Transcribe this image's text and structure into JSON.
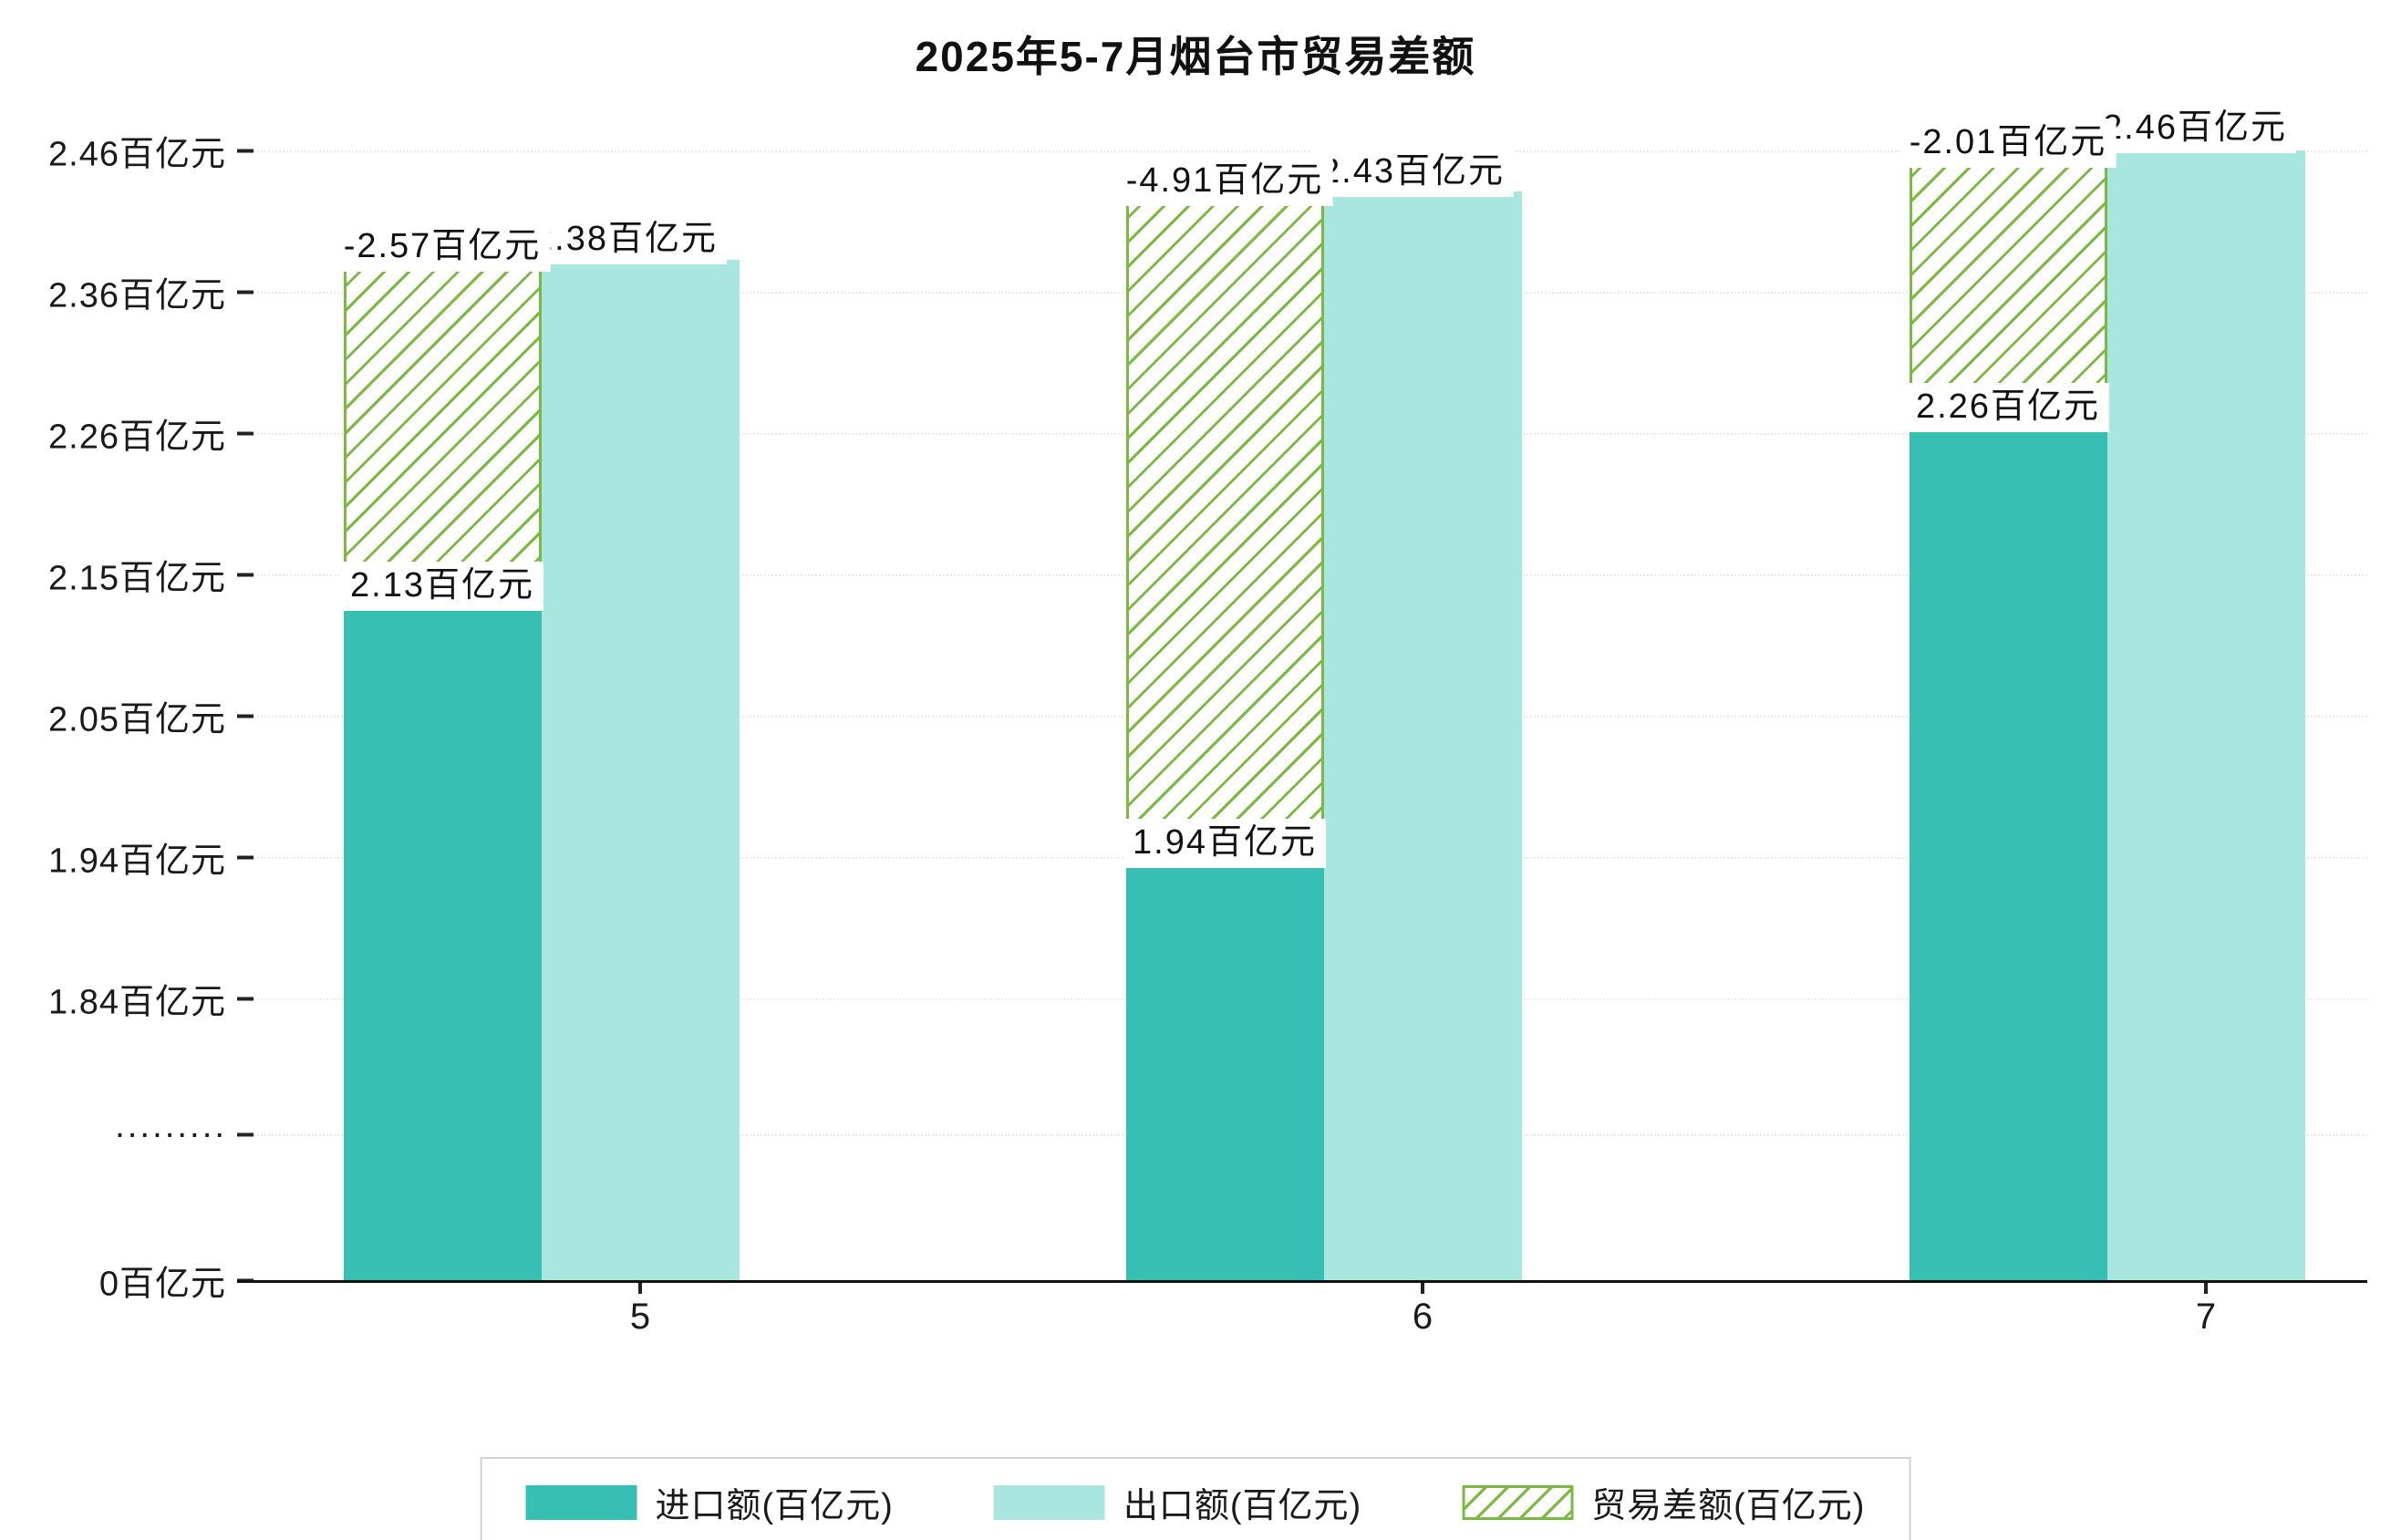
{
  "title": "2025年5-7月烟台市贸易差额",
  "colors": {
    "import": "#38bfb3",
    "export": "#a9e6df",
    "diff": "#7cb943",
    "axis": "#111111"
  },
  "y_axis": {
    "ticks": [
      "2.46百亿元",
      "2.36百亿元",
      "2.26百亿元",
      "2.15百亿元",
      "2.05百亿元",
      "1.94百亿元",
      "1.84百亿元",
      "·········",
      "0百亿元"
    ]
  },
  "x_axis": {
    "ticks": [
      "5",
      "6",
      "7"
    ]
  },
  "months": [
    {
      "month": "5",
      "import_label": "2.13百亿元",
      "export_label": "2.38百亿元",
      "diff_label": "-2.57百亿元"
    },
    {
      "month": "6",
      "import_label": "1.94百亿元",
      "export_label": "2.43百亿元",
      "diff_label": "-4.91百亿元"
    },
    {
      "month": "7",
      "import_label": "2.26百亿元",
      "export_label": "2.46百亿元",
      "diff_label": "-2.01百亿元"
    }
  ],
  "legend": {
    "items": [
      "进口额(百亿元)",
      "出口额(百亿元)",
      "贸易差额(百亿元)"
    ]
  },
  "chart_data": {
    "type": "bar",
    "title": "2025年5-7月烟台市贸易差额",
    "categories": [
      "5",
      "6",
      "7"
    ],
    "series": [
      {
        "name": "进口额(百亿元)",
        "values": [
          2.13,
          1.94,
          2.26
        ]
      },
      {
        "name": "出口额(百亿元)",
        "values": [
          2.38,
          2.43,
          2.46
        ]
      },
      {
        "name": "贸易差额(百亿元)",
        "values": [
          -2.57,
          -4.91,
          -2.01
        ],
        "drawn_as": "floating bar spanning from import value to export value, hatched"
      }
    ],
    "y_ticks": [
      "0百亿元",
      "·········",
      "1.84百亿元",
      "1.94百亿元",
      "2.05百亿元",
      "2.15百亿元",
      "2.26百亿元",
      "2.36百亿元",
      "2.46百亿元"
    ],
    "axis_break": true,
    "ylim": [
      0,
      2.46
    ],
    "grid": true,
    "legend_position": "bottom"
  }
}
